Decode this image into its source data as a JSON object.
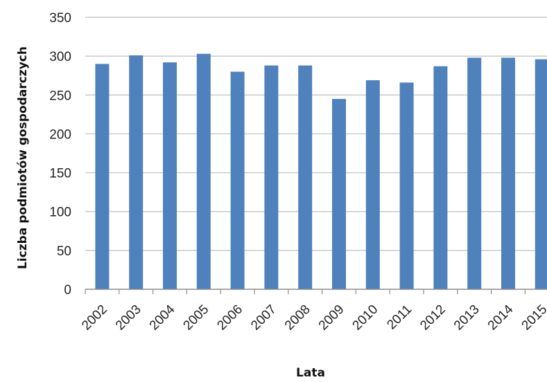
{
  "chart_data": {
    "type": "bar",
    "title": "",
    "xlabel": "Lata",
    "ylabel": "Liczba podmiotów gospodarczych",
    "categories": [
      "2002",
      "2003",
      "2004",
      "2005",
      "2006",
      "2007",
      "2008",
      "2009",
      "2010",
      "2011",
      "2012",
      "2013",
      "2014",
      "2015"
    ],
    "values": [
      290,
      301,
      292,
      303,
      280,
      288,
      288,
      245,
      269,
      266,
      287,
      298,
      298,
      296
    ],
    "ylim": [
      0,
      350
    ],
    "yticks": [
      0,
      50,
      100,
      150,
      200,
      250,
      300,
      350
    ],
    "grid": true,
    "legend": "none",
    "bar_color": "#4f81bd",
    "grid_color": "#bfbfbf"
  }
}
